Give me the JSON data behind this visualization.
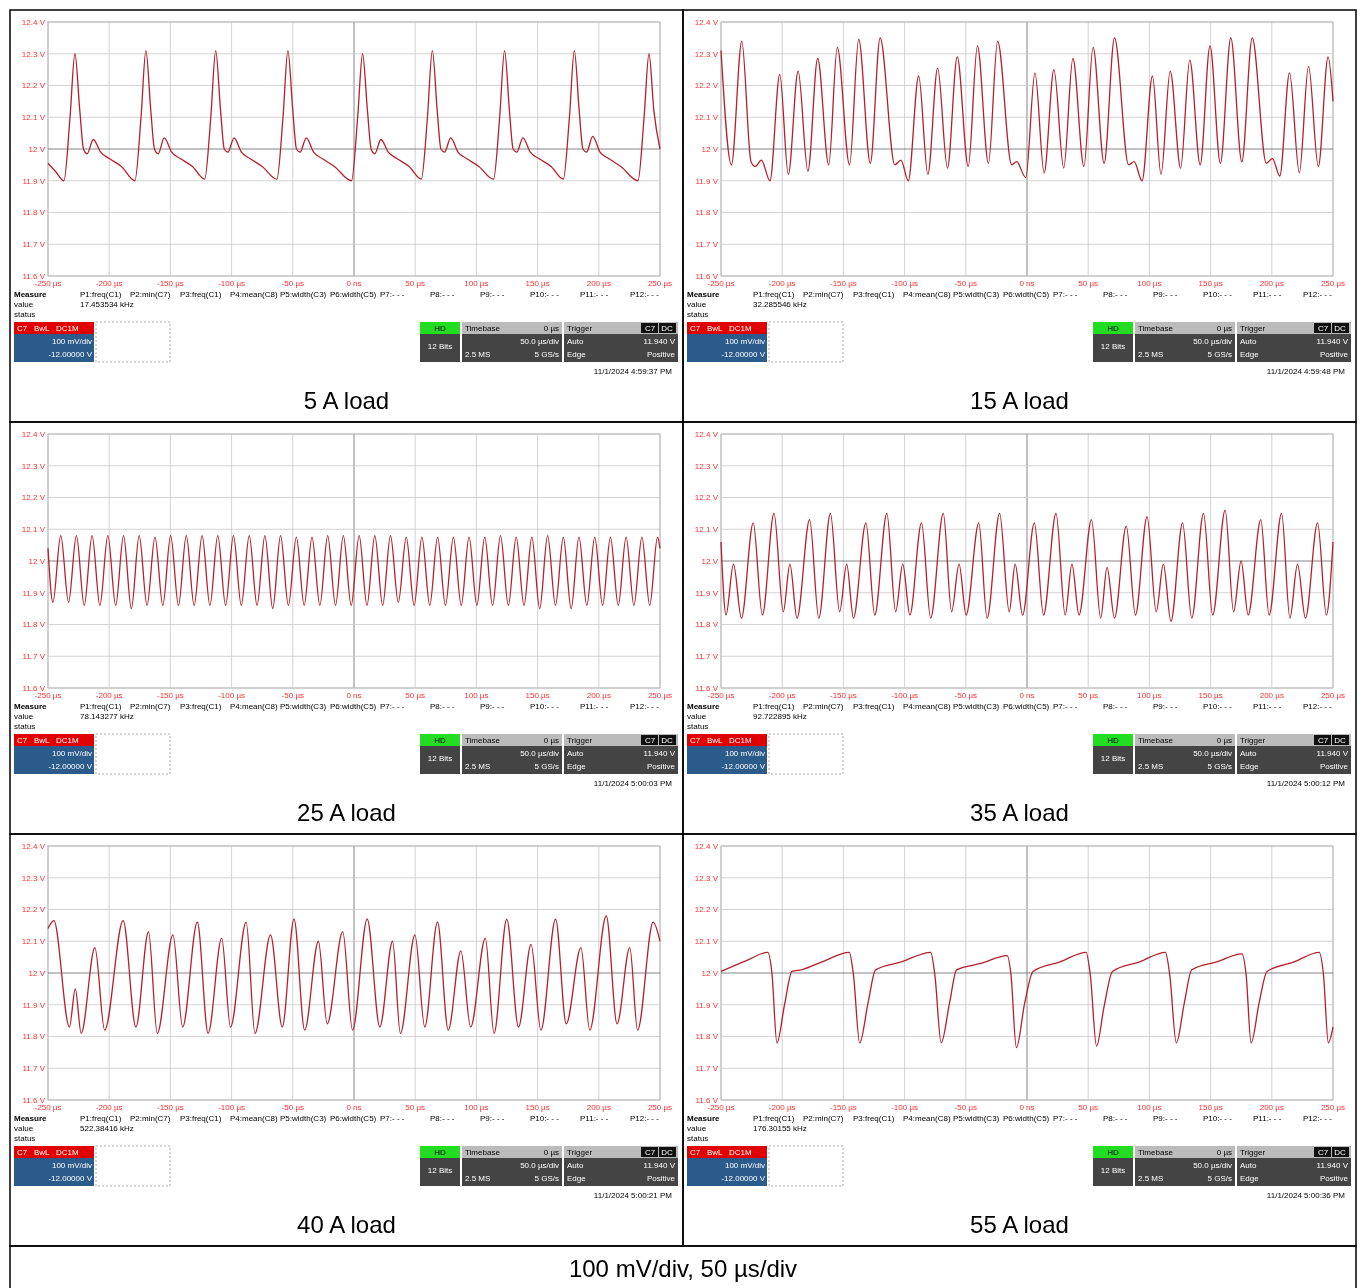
{
  "chart_data": [
    {
      "type": "line",
      "title": "5 A load",
      "xlim": [
        -250,
        250
      ],
      "ylim": [
        11.6,
        12.4
      ],
      "grid": true,
      "xticks": [
        {
          "value": -250,
          "label": "-250 µs"
        },
        {
          "value": -200,
          "label": "-200 µs"
        },
        {
          "value": -150,
          "label": "-150 µs"
        },
        {
          "value": -100,
          "label": "-100 µs"
        },
        {
          "value": -50,
          "label": "-50 µs"
        },
        {
          "value": 0,
          "label": "0 ns"
        },
        {
          "value": 50,
          "label": "50 µs"
        },
        {
          "value": 100,
          "label": "100 µs"
        },
        {
          "value": 150,
          "label": "150 µs"
        },
        {
          "value": 200,
          "label": "200 µs"
        },
        {
          "value": 250,
          "label": "250 µs"
        }
      ],
      "yticks": [
        {
          "value": 11.6,
          "label": "11.6 V"
        },
        {
          "value": 11.7,
          "label": "11.7 V"
        },
        {
          "value": 11.8,
          "label": "11.8 V"
        },
        {
          "value": 11.9,
          "label": "11.9 V"
        },
        {
          "value": 12,
          "label": "12 V"
        },
        {
          "value": 12.1,
          "label": "12.1 V"
        },
        {
          "value": 12.2,
          "label": "12.2 V"
        },
        {
          "value": 12.3,
          "label": "12.3 V"
        },
        {
          "value": 12.4,
          "label": "12.4 V"
        }
      ],
      "series": [
        {
          "color": "#b5202a",
          "x": [
            -250,
            -244,
            -237,
            -232,
            -228,
            -224,
            -221,
            -218,
            -213,
            -207,
            -200,
            -190,
            -179,
            -174,
            -170,
            -166,
            -163,
            -160,
            -155,
            -149,
            -142,
            -132,
            -122,
            -117,
            -113,
            -109,
            -106,
            -103,
            -98,
            -92,
            -85,
            -75,
            -63,
            -58,
            -54,
            -50,
            -47,
            -44,
            -39,
            -33,
            -26,
            -16,
            -2,
            3,
            7,
            11,
            14,
            17,
            22,
            28,
            35,
            45,
            55,
            60,
            64,
            68,
            71,
            74,
            79,
            85,
            92,
            102,
            114,
            119,
            123,
            127,
            130,
            133,
            138,
            144,
            151,
            161,
            171,
            176,
            180,
            184,
            187,
            190,
            195,
            201,
            208,
            218,
            232,
            237,
            241,
            245,
            250
          ],
          "values": [
            11.955,
            11.93,
            11.9,
            12.1,
            12.3,
            12.12,
            12.0,
            11.985,
            12.03,
            11.99,
            11.97,
            11.945,
            11.9,
            12.1,
            12.31,
            12.12,
            12.0,
            11.985,
            12.035,
            11.99,
            11.97,
            11.945,
            11.905,
            12.1,
            12.31,
            12.12,
            12.0,
            11.99,
            12.035,
            11.99,
            11.97,
            11.945,
            11.905,
            12.1,
            12.31,
            12.12,
            12.0,
            11.99,
            12.035,
            11.99,
            11.97,
            11.945,
            11.9,
            12.1,
            12.3,
            12.12,
            12.0,
            11.985,
            12.03,
            11.99,
            11.97,
            11.945,
            11.905,
            12.1,
            12.31,
            12.12,
            12.0,
            11.99,
            12.035,
            11.99,
            11.97,
            11.945,
            11.905,
            12.1,
            12.31,
            12.12,
            12.0,
            11.99,
            12.035,
            11.99,
            11.97,
            11.945,
            11.905,
            12.1,
            12.31,
            12.12,
            12.0,
            11.99,
            12.04,
            11.99,
            11.97,
            11.945,
            11.9,
            12.1,
            12.3,
            12.12,
            12.0
          ]
        }
      ],
      "annotations": [
        "Measure",
        "value",
        "status",
        "P1:freq(C1)",
        "P2:min(C7)",
        "P3:freq(C1)",
        "P4:mean(C8)",
        "P5:width(C3)",
        "P6:width(C5)",
        "P7:- - -",
        "P8:- - -",
        "P9:- - -",
        "P10:- - -",
        "P11:- - -",
        "P12:- - -",
        "17.453534 kHz",
        "C7",
        "BwL",
        "DC1M",
        "100 mV/div",
        "-12.00000 V",
        "HD",
        "12 Bits",
        "Timebase",
        "0 µs",
        "50.0 µs/div",
        "2.5 MS",
        "5 GS/s",
        "Trigger",
        "C7",
        "DC",
        "Auto",
        "11.940 V",
        "Edge",
        "Positive",
        "11/1/2024 4:59:37 PM"
      ]
    },
    {
      "type": "line",
      "title": "15 A load",
      "xlim": [
        -250,
        250
      ],
      "ylim": [
        11.6,
        12.4
      ],
      "grid": true,
      "xticks": [
        {
          "value": -250,
          "label": "-250 µs"
        },
        {
          "value": -200,
          "label": "-200 µs"
        },
        {
          "value": -150,
          "label": "-150 µs"
        },
        {
          "value": -100,
          "label": "-100 µs"
        },
        {
          "value": -50,
          "label": "-50 µs"
        },
        {
          "value": 0,
          "label": "0 ns"
        },
        {
          "value": 50,
          "label": "50 µs"
        },
        {
          "value": 100,
          "label": "100 µs"
        },
        {
          "value": 150,
          "label": "150 µs"
        },
        {
          "value": 200,
          "label": "200 µs"
        },
        {
          "value": 250,
          "label": "250 µs"
        }
      ],
      "yticks": [
        {
          "value": 11.6,
          "label": "11.6 V"
        },
        {
          "value": 11.7,
          "label": "11.7 V"
        },
        {
          "value": 11.8,
          "label": "11.8 V"
        },
        {
          "value": 11.9,
          "label": "11.9 V"
        },
        {
          "value": 12,
          "label": "12 V"
        },
        {
          "value": 12.1,
          "label": "12.1 V"
        },
        {
          "value": 12.2,
          "label": "12.2 V"
        },
        {
          "value": 12.3,
          "label": "12.3 V"
        },
        {
          "value": 12.4,
          "label": "12.4 V"
        }
      ],
      "series": [
        {
          "color": "#b5202a",
          "x": [
            -250,
            -241.5,
            -233,
            -225.5,
            -222,
            -217,
            -210,
            -202,
            -195,
            -187,
            -179,
            -171,
            -162,
            -155,
            -145,
            -137.5,
            -128,
            -120,
            -108,
            -103,
            -97,
            -88.5,
            -81,
            -73,
            -65,
            -57,
            -48,
            -40.5,
            -31.5,
            -24,
            -12.5,
            -8.5,
            -1,
            6.5,
            14,
            22,
            30,
            37.5,
            46.5,
            54,
            63,
            71.5,
            83,
            87.5,
            94,
            102.5,
            109.5,
            117,
            125.5,
            133,
            141.5,
            149.5,
            158,
            166.5,
            175.5,
            184,
            195.5,
            200.5,
            206.5,
            214.5,
            222.5,
            230,
            238,
            246,
            250
          ],
          "values": [
            12.31,
            11.95,
            12.34,
            11.96,
            11.945,
            11.965,
            11.9,
            12.235,
            11.92,
            12.245,
            11.93,
            12.285,
            11.95,
            12.32,
            11.95,
            12.345,
            11.955,
            12.35,
            11.95,
            11.965,
            11.9,
            12.23,
            11.92,
            12.255,
            11.94,
            12.29,
            11.945,
            12.325,
            11.955,
            12.34,
            11.95,
            11.96,
            11.91,
            12.24,
            11.925,
            12.25,
            11.94,
            12.285,
            11.945,
            12.32,
            11.955,
            12.35,
            11.95,
            11.96,
            11.9,
            12.23,
            11.92,
            12.245,
            11.94,
            12.28,
            11.95,
            12.325,
            11.955,
            12.35,
            11.96,
            12.35,
            11.955,
            11.97,
            11.915,
            12.24,
            11.925,
            12.26,
            11.945,
            12.29,
            12.15
          ]
        }
      ],
      "annotations": [
        "Measure",
        "value",
        "status",
        "P1:freq(C1)",
        "P2:min(C7)",
        "P3:freq(C1)",
        "P4:mean(C8)",
        "P5:width(C3)",
        "P6:width(C5)",
        "P7:- - -",
        "P8:- - -",
        "P9:- - -",
        "P10:- - -",
        "P11:- - -",
        "P12:- - -",
        "32.285546 kHz",
        "C7",
        "BwL",
        "DC1M",
        "100 mV/div",
        "-12.00000 V",
        "HD",
        "12 Bits",
        "Timebase",
        "0 µs",
        "50.0 µs/div",
        "2.5 MS",
        "5 GS/s",
        "Trigger",
        "C7",
        "DC",
        "Auto",
        "11.940 V",
        "Edge",
        "Positive",
        "11/1/2024 4:59:48 PM"
      ]
    },
    {
      "type": "line",
      "title": "25 A load",
      "xlim": [
        -250,
        250
      ],
      "ylim": [
        11.6,
        12.4
      ],
      "grid": true,
      "xticks": [
        {
          "value": -250,
          "label": "-250 µs"
        },
        {
          "value": -200,
          "label": "-200 µs"
        },
        {
          "value": -150,
          "label": "-150 µs"
        },
        {
          "value": -100,
          "label": "-100 µs"
        },
        {
          "value": -50,
          "label": "-50 µs"
        },
        {
          "value": 0,
          "label": "0 ns"
        },
        {
          "value": 50,
          "label": "50 µs"
        },
        {
          "value": 100,
          "label": "100 µs"
        },
        {
          "value": 150,
          "label": "150 µs"
        },
        {
          "value": 200,
          "label": "200 µs"
        },
        {
          "value": 250,
          "label": "250 µs"
        }
      ],
      "yticks": [
        {
          "value": 11.6,
          "label": "11.6 V"
        },
        {
          "value": 11.7,
          "label": "11.7 V"
        },
        {
          "value": 11.8,
          "label": "11.8 V"
        },
        {
          "value": 11.9,
          "label": "11.9 V"
        },
        {
          "value": 12,
          "label": "12 V"
        },
        {
          "value": 12.1,
          "label": "12.1 V"
        },
        {
          "value": 12.2,
          "label": "12.2 V"
        },
        {
          "value": 12.3,
          "label": "12.3 V"
        },
        {
          "value": 12.4,
          "label": "12.4 V"
        }
      ],
      "series": [
        {
          "color": "#b5202a",
          "x": [
            -250,
            -246.0,
            -239.6,
            -233.2,
            -226.8,
            -220.4,
            -214.0,
            -207.6,
            -201.1,
            -194.7,
            -188.3,
            -181.9,
            -175.5,
            -169.1,
            -162.6,
            -156.2,
            -149.8,
            -143.4,
            -137.0,
            -130.6,
            -124.1,
            -117.7,
            -111.3,
            -104.9,
            -98.5,
            -92.1,
            -85.6,
            -79.2,
            -72.8,
            -66.4,
            -60.0,
            -53.6,
            -47.1,
            -40.7,
            -34.3,
            -27.9,
            -21.5,
            -15.1,
            -8.7,
            -2.3,
            4.2,
            10.6,
            17.0,
            23.4,
            29.8,
            36.2,
            42.7,
            49.1,
            55.5,
            61.9,
            68.3,
            74.7,
            81.2,
            87.6,
            94.0,
            100.4,
            106.8,
            113.2,
            119.7,
            126.1,
            132.5,
            138.9,
            145.3,
            151.7,
            158.2,
            164.6,
            171.0,
            177.4,
            183.8,
            190.2,
            196.7,
            203.1,
            209.5,
            215.9,
            222.3,
            228.7,
            235.2,
            241.6,
            248.0,
            250
          ],
          "values": [
            12.04,
            11.87,
            12.08,
            11.87,
            12.08,
            11.86,
            12.08,
            11.86,
            12.08,
            11.86,
            12.08,
            11.85,
            12.08,
            11.86,
            12.075,
            11.86,
            12.08,
            11.86,
            12.08,
            11.86,
            12.08,
            11.86,
            12.08,
            11.86,
            12.08,
            11.86,
            12.08,
            11.86,
            12.08,
            11.85,
            12.08,
            11.86,
            12.075,
            11.86,
            12.075,
            11.86,
            12.08,
            11.86,
            12.08,
            11.86,
            12.08,
            11.86,
            12.08,
            11.86,
            12.08,
            11.87,
            12.075,
            11.86,
            12.075,
            11.86,
            12.075,
            11.86,
            12.075,
            11.86,
            12.075,
            11.86,
            12.075,
            11.86,
            12.08,
            11.86,
            12.075,
            11.86,
            12.075,
            11.85,
            12.08,
            11.86,
            12.075,
            11.85,
            12.075,
            11.86,
            12.075,
            11.86,
            12.075,
            11.86,
            12.075,
            11.86,
            12.075,
            11.86,
            12.075,
            12.04
          ]
        }
      ],
      "annotations": [
        "Measure",
        "value",
        "status",
        "P1:freq(C1)",
        "P2:min(C7)",
        "P3:freq(C1)",
        "P4:mean(C8)",
        "P5:width(C3)",
        "P6:width(C5)",
        "P7:- - -",
        "P8:- - -",
        "P9:- - -",
        "P10:- - -",
        "P11:- - -",
        "P12:- - -",
        "78.143277 kHz",
        "C7",
        "BwL",
        "DC1M",
        "100 mV/div",
        "-12.00000 V",
        "HD",
        "12 Bits",
        "Timebase",
        "0 µs",
        "50.0 µs/div",
        "2.5 MS",
        "5 GS/s",
        "Trigger",
        "C7",
        "DC",
        "Auto",
        "11.940 V",
        "Edge",
        "Positive",
        "11/1/2024 5:00:03 PM"
      ]
    },
    {
      "type": "line",
      "title": "35 A load",
      "xlim": [
        -250,
        250
      ],
      "ylim": [
        11.6,
        12.4
      ],
      "grid": true,
      "xticks": [
        {
          "value": -250,
          "label": "-250 µs"
        },
        {
          "value": -200,
          "label": "-200 µs"
        },
        {
          "value": -150,
          "label": "-150 µs"
        },
        {
          "value": -100,
          "label": "-100 µs"
        },
        {
          "value": -50,
          "label": "-50 µs"
        },
        {
          "value": 0,
          "label": "0 ns"
        },
        {
          "value": 50,
          "label": "50 µs"
        },
        {
          "value": 100,
          "label": "100 µs"
        },
        {
          "value": 150,
          "label": "150 µs"
        },
        {
          "value": 200,
          "label": "200 µs"
        },
        {
          "value": 250,
          "label": "250 µs"
        }
      ],
      "yticks": [
        {
          "value": 11.6,
          "label": "11.6 V"
        },
        {
          "value": 11.7,
          "label": "11.7 V"
        },
        {
          "value": 11.8,
          "label": "11.8 V"
        },
        {
          "value": 11.9,
          "label": "11.9 V"
        },
        {
          "value": 12,
          "label": "12 V"
        },
        {
          "value": 12.1,
          "label": "12.1 V"
        },
        {
          "value": 12.2,
          "label": "12.2 V"
        },
        {
          "value": 12.3,
          "label": "12.3 V"
        },
        {
          "value": 12.4,
          "label": "12.4 V"
        }
      ],
      "series": [
        {
          "color": "#b5202a",
          "x": [
            -250,
            -245.9,
            -239.8,
            -233.3,
            -223.7,
            -216.2,
            -206.7,
            -199.1,
            -193.7,
            -187.9,
            -177.6,
            -170.1,
            -160.6,
            -153.1,
            -147.3,
            -141.8,
            -131.6,
            -124.4,
            -114.5,
            -107.3,
            -101.5,
            -95.7,
            -86.2,
            -78.7,
            -68.4,
            -61.6,
            -55.5,
            -49.7,
            -39.4,
            -32.6,
            -22.4,
            -14.5,
            -9.7,
            -3.6,
            6.0,
            13.5,
            23.7,
            31.2,
            36.7,
            42.5,
            52.7,
            60.2,
            65.4,
            71.5,
            81.1,
            88.6,
            98.1,
            105.6,
            111.4,
            117.6,
            127.1,
            134.6,
            144.2,
            151.7,
            161.9,
            168.8,
            174.9,
            180.7,
            191.0,
            197.8,
            208.0,
            214.8,
            221.0,
            227.5,
            237.4,
            244.6,
            250
          ],
          "values": [
            12.06,
            11.83,
            11.99,
            11.82,
            12.12,
            11.83,
            12.15,
            11.84,
            11.99,
            11.82,
            12.13,
            11.82,
            12.15,
            11.84,
            11.99,
            11.82,
            12.12,
            11.83,
            12.15,
            11.84,
            11.99,
            11.83,
            12.12,
            11.82,
            12.15,
            11.84,
            11.99,
            11.83,
            12.12,
            11.82,
            12.15,
            11.84,
            11.99,
            11.83,
            12.12,
            11.83,
            12.15,
            11.83,
            11.99,
            11.83,
            12.13,
            11.82,
            11.98,
            11.82,
            12.11,
            11.83,
            12.14,
            11.84,
            11.99,
            11.81,
            12.12,
            11.82,
            12.15,
            11.83,
            12.16,
            11.84,
            12.0,
            11.83,
            12.13,
            11.83,
            12.15,
            11.82,
            11.99,
            11.82,
            12.12,
            11.83,
            12.06
          ]
        }
      ],
      "annotations": [
        "Measure",
        "value",
        "status",
        "P1:freq(C1)",
        "P2:min(C7)",
        "P3:freq(C1)",
        "P4:mean(C8)",
        "P5:width(C3)",
        "P6:width(C5)",
        "P7:- - -",
        "P8:- - -",
        "P9:- - -",
        "P10:- - -",
        "P11:- - -",
        "P12:- - -",
        "92.722895 kHz",
        "C7",
        "BwL",
        "DC1M",
        "100 mV/div",
        "-12.00000 V",
        "HD",
        "12 Bits",
        "Timebase",
        "0 µs",
        "50.0 µs/div",
        "2.5 MS",
        "5 GS/s",
        "Trigger",
        "C7",
        "DC",
        "Auto",
        "11.940 V",
        "Edge",
        "Positive",
        "11/1/2024 5:00:12 PM"
      ]
    },
    {
      "type": "line",
      "title": "40 A load",
      "xlim": [
        -250,
        250
      ],
      "ylim": [
        11.6,
        12.4
      ],
      "grid": true,
      "xticks": [
        {
          "value": -250,
          "label": "-250 µs"
        },
        {
          "value": -200,
          "label": "-200 µs"
        },
        {
          "value": -150,
          "label": "-150 µs"
        },
        {
          "value": -100,
          "label": "-100 µs"
        },
        {
          "value": -50,
          "label": "-50 µs"
        },
        {
          "value": 0,
          "label": "0 ns"
        },
        {
          "value": 50,
          "label": "50 µs"
        },
        {
          "value": 100,
          "label": "100 µs"
        },
        {
          "value": 150,
          "label": "150 µs"
        },
        {
          "value": 200,
          "label": "200 µs"
        },
        {
          "value": 250,
          "label": "250 µs"
        }
      ],
      "yticks": [
        {
          "value": 11.6,
          "label": "11.6 V"
        },
        {
          "value": 11.7,
          "label": "11.7 V"
        },
        {
          "value": 11.8,
          "label": "11.8 V"
        },
        {
          "value": 11.9,
          "label": "11.9 V"
        },
        {
          "value": 12,
          "label": "12 V"
        },
        {
          "value": 12.1,
          "label": "12.1 V"
        },
        {
          "value": 12.2,
          "label": "12.2 V"
        },
        {
          "value": 12.3,
          "label": "12.3 V"
        },
        {
          "value": 12.4,
          "label": "12.4 V"
        }
      ],
      "series": [
        {
          "color": "#b5202a",
          "x": [
            -250,
            -245.2,
            -232.5,
            -227.7,
            -222.9,
            -211.7,
            -203.7,
            -188.6,
            -178.2,
            -167.9,
            -160.7,
            -147.9,
            -140.0,
            -128.0,
            -119.2,
            -108.1,
            -100.9,
            -88.1,
            -80.9,
            -68.2,
            -58.6,
            -49.0,
            -40.3,
            -29.1,
            -21.9,
            -9.2,
            -1.2,
            10.8,
            21.1,
            31.5,
            37.9,
            49.8,
            57.8,
            68.2,
            77.0,
            87.3,
            95.3,
            107.3,
            114.4,
            124.8,
            134.4,
            144.7,
            152.7,
            164.7,
            173.4,
            185.4,
            192.6,
            206.1,
            214.9,
            225.3,
            231.7,
            244.4,
            250
          ],
          "values": [
            12.14,
            12.165,
            11.83,
            11.95,
            11.81,
            12.08,
            11.82,
            12.165,
            11.83,
            12.13,
            11.81,
            12.12,
            11.83,
            12.16,
            11.81,
            12.11,
            11.83,
            12.16,
            11.81,
            12.12,
            11.83,
            12.17,
            11.82,
            12.1,
            11.84,
            12.13,
            11.82,
            12.17,
            11.83,
            12.1,
            11.81,
            12.12,
            11.83,
            12.16,
            11.82,
            12.07,
            11.83,
            12.11,
            11.81,
            12.17,
            11.83,
            12.09,
            11.82,
            12.17,
            11.84,
            12.08,
            11.82,
            12.18,
            11.84,
            12.08,
            11.82,
            12.16,
            12.1
          ]
        }
      ],
      "annotations": [
        "Measure",
        "value",
        "status",
        "P1:freq(C1)",
        "P2:min(C7)",
        "P3:freq(C1)",
        "P4:mean(C8)",
        "P5:width(C3)",
        "P6:width(C5)",
        "P7:- - -",
        "P8:- - -",
        "P9:- - -",
        "P10:- - -",
        "P11:- - -",
        "P12:- - -",
        "522.38416 kHz",
        "C7",
        "BwL",
        "DC1M",
        "100 mV/div",
        "-12.00000 V",
        "HD",
        "12 Bits",
        "Timebase",
        "0 µs",
        "50.0 µs/div",
        "2.5 MS",
        "5 GS/s",
        "Trigger",
        "C7",
        "DC",
        "Auto",
        "11.940 V",
        "Edge",
        "Positive",
        "11/1/2024 5:00:21 PM"
      ]
    },
    {
      "type": "line",
      "title": "55 A load",
      "xlim": [
        -250,
        250
      ],
      "ylim": [
        11.6,
        12.4
      ],
      "grid": true,
      "xticks": [
        {
          "value": -250,
          "label": "-250 µs"
        },
        {
          "value": -200,
          "label": "-200 µs"
        },
        {
          "value": -150,
          "label": "-150 µs"
        },
        {
          "value": -100,
          "label": "-100 µs"
        },
        {
          "value": -50,
          "label": "-50 µs"
        },
        {
          "value": 0,
          "label": "0 ns"
        },
        {
          "value": 50,
          "label": "50 µs"
        },
        {
          "value": 100,
          "label": "100 µs"
        },
        {
          "value": 150,
          "label": "150 µs"
        },
        {
          "value": 200,
          "label": "200 µs"
        },
        {
          "value": 250,
          "label": "250 µs"
        }
      ],
      "yticks": [
        {
          "value": 11.6,
          "label": "11.6 V"
        },
        {
          "value": 11.7,
          "label": "11.7 V"
        },
        {
          "value": 11.8,
          "label": "11.8 V"
        },
        {
          "value": 11.9,
          "label": "11.9 V"
        },
        {
          "value": 12,
          "label": "12 V"
        },
        {
          "value": 12.1,
          "label": "12.1 V"
        },
        {
          "value": 12.2,
          "label": "12.2 V"
        },
        {
          "value": 12.3,
          "label": "12.3 V"
        },
        {
          "value": 12.4,
          "label": "12.4 V"
        }
      ],
      "series": [
        {
          "color": "#b5202a",
          "x": [
            -250,
            -228.8,
            -211.8,
            -208.4,
            -204.3,
            -198.1,
            -192.0,
            -184.5,
            -167.4,
            -145.2,
            -141.8,
            -136.7,
            -129.9,
            -123.7,
            -102.6,
            -78.7,
            -75.3,
            -70.1,
            -63.3,
            -57.5,
            -37.7,
            -16.2,
            -13.1,
            -8.7,
            -1.9,
            4.9,
            27.1,
            48.3,
            51.7,
            56.8,
            63.0,
            69.8,
            92.0,
            113.1,
            116.6,
            122.0,
            128.5,
            134.6,
            155.1,
            175.6,
            179.0,
            183.1,
            189.6,
            196.1,
            218.3,
            238.7,
            242.2,
            246.2,
            250
          ],
          "values": [
            12.005,
            12.04,
            12.065,
            12.0,
            11.78,
            11.9,
            12.005,
            12.01,
            12.035,
            12.065,
            11.995,
            11.78,
            11.905,
            12.01,
            12.035,
            12.065,
            11.995,
            11.78,
            11.905,
            12.01,
            12.03,
            12.055,
            11.995,
            11.765,
            11.905,
            12.005,
            12.035,
            12.065,
            11.995,
            11.77,
            11.895,
            12.005,
            12.035,
            12.065,
            11.995,
            11.78,
            11.905,
            12.01,
            12.035,
            12.06,
            11.995,
            11.78,
            11.905,
            12.005,
            12.035,
            12.065,
            11.995,
            11.78,
            11.83
          ]
        }
      ],
      "annotations": [
        "Measure",
        "value",
        "status",
        "P1:freq(C1)",
        "P2:min(C7)",
        "P3:freq(C1)",
        "P4:mean(C8)",
        "P5:width(C3)",
        "P6:width(C5)",
        "P7:- - -",
        "P8:- - -",
        "P9:- - -",
        "P10:- - -",
        "P11:- - -",
        "P12:- - -",
        "176.30155 kHz",
        "C7",
        "BwL",
        "DC1M",
        "100 mV/div",
        "-12.00000 V",
        "HD",
        "12 Bits",
        "Timebase",
        "0 µs",
        "50.0 µs/div",
        "2.5 MS",
        "5 GS/s",
        "Trigger",
        "C7",
        "DC",
        "Auto",
        "11.940 V",
        "Edge",
        "Positive",
        "11/1/2024 5:00:36 PM"
      ]
    },
    {
      "type": "other",
      "title": "100 mV/div, 50 µs/div"
    }
  ]
}
